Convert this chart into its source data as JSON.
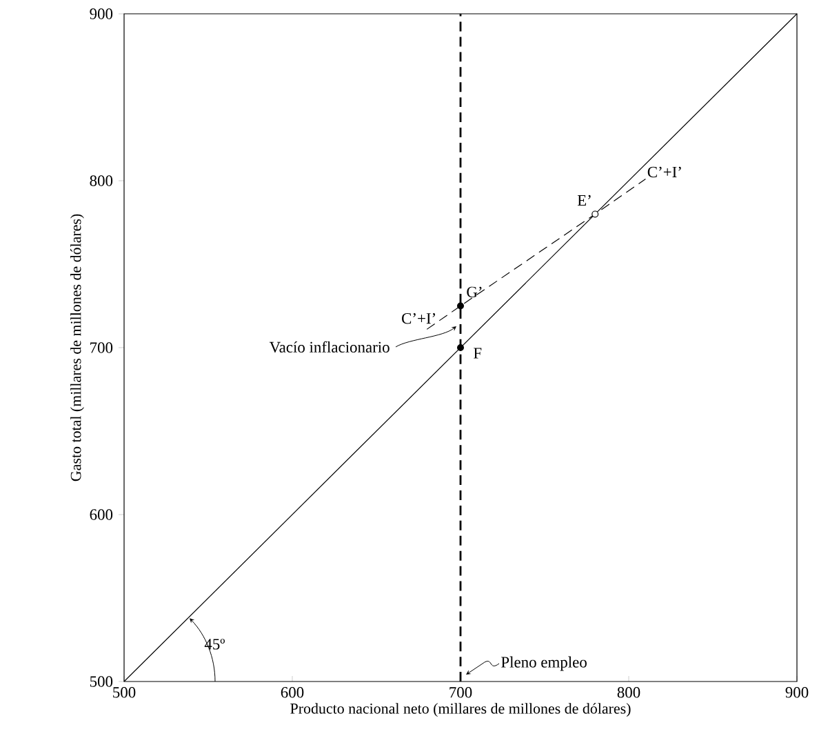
{
  "chart_data": {
    "type": "line",
    "xlabel": "Producto nacional neto (millares de millones de dólares)",
    "ylabel": "Gasto total  (millares de millones de dólares)",
    "xlim": [
      500,
      900
    ],
    "ylim": [
      500,
      900
    ],
    "xticks": [
      500,
      600,
      700,
      800,
      900
    ],
    "yticks": [
      500,
      600,
      700,
      800,
      900
    ],
    "grid": false,
    "series": [
      {
        "color": "#000000",
        "x": [
          500,
          900
        ],
        "values": [
          500,
          900
        ]
      },
      {
        "name": "C’+I’",
        "line_style": "dashed",
        "color": "#000000",
        "x": [
          680,
          700,
          780,
          810
        ],
        "values": [
          711,
          725,
          780,
          801
        ]
      },
      {
        "type": "scatter",
        "marker": "circle",
        "color": "#000000",
        "x": [
          700,
          700
        ],
        "values": [
          700,
          725
        ]
      },
      {
        "type": "scatter",
        "marker": "circle",
        "color": "#ffffff",
        "x": [
          780
        ],
        "values": [
          780
        ]
      }
    ],
    "ref_lines": [
      {
        "axis": "x",
        "value": 700,
        "label": "Pleno empleo",
        "line_style": "dashed"
      }
    ],
    "annotations": [
      {
        "text": "G’",
        "x": 700,
        "y": 725
      },
      {
        "text": "F",
        "x": 700,
        "y": 700
      },
      {
        "text": "E’",
        "x": 780,
        "y": 780
      },
      {
        "text": "C’+I’",
        "x": 690,
        "y": 715
      },
      {
        "text": "Vacío inflacionario",
        "x": 700,
        "y": 712
      },
      "45º"
    ]
  }
}
